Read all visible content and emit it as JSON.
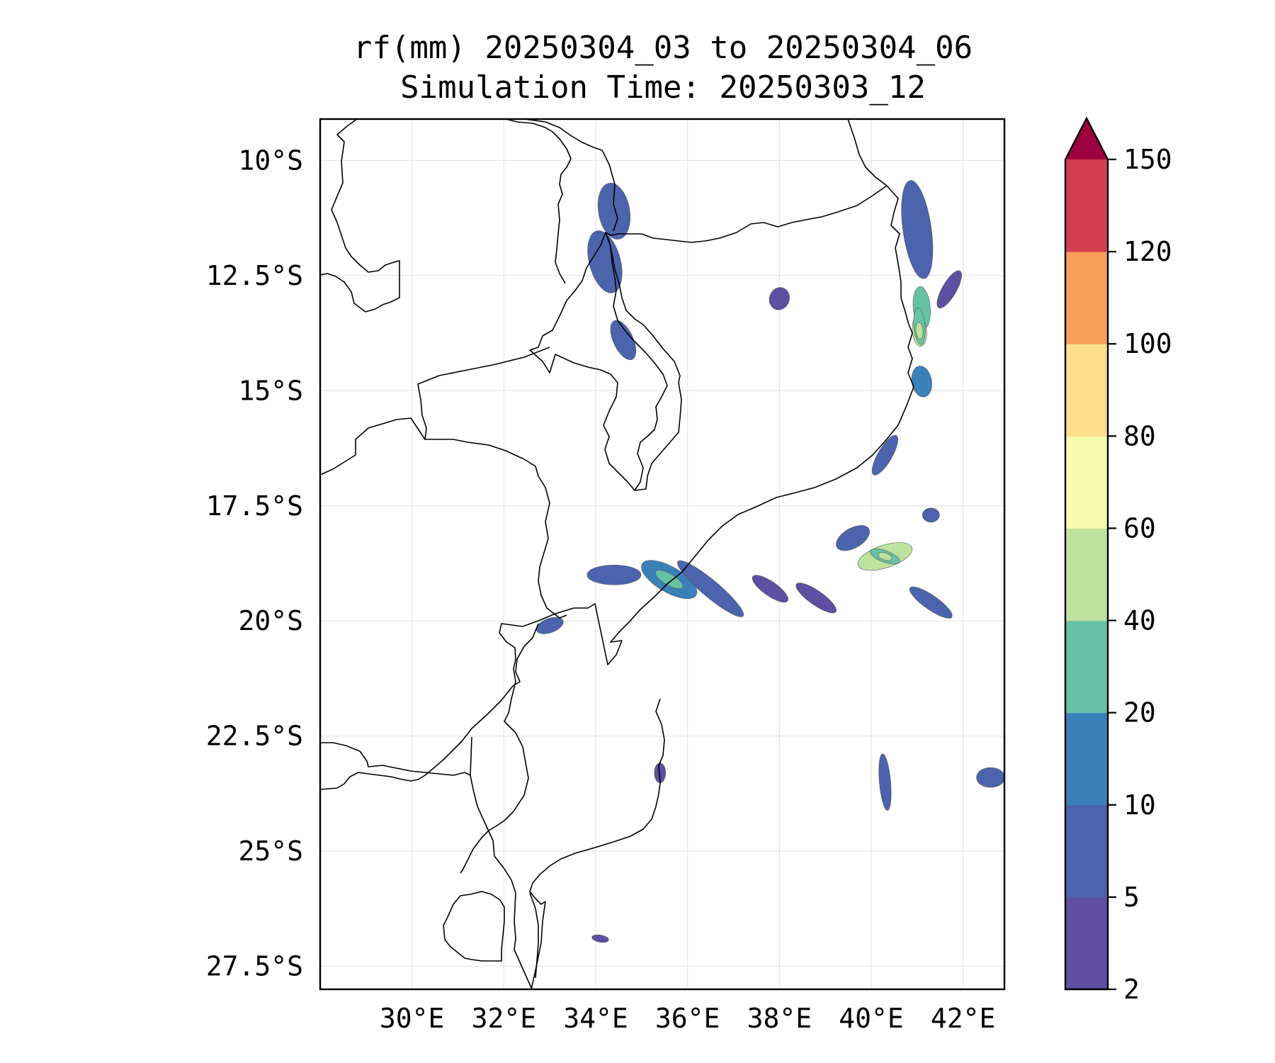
{
  "title": {
    "line1": "rf(mm) 20250304_03 to 20250304_06",
    "line2": "Simulation Time: 20250303_12"
  },
  "map": {
    "lon_range": [
      28.0,
      42.9
    ],
    "lat_range": [
      -28.0,
      -9.1
    ],
    "lon_ticks": [
      {
        "value": 30,
        "label": "30°E"
      },
      {
        "value": 32,
        "label": "32°E"
      },
      {
        "value": 34,
        "label": "34°E"
      },
      {
        "value": 36,
        "label": "36°E"
      },
      {
        "value": 38,
        "label": "38°E"
      },
      {
        "value": 40,
        "label": "40°E"
      },
      {
        "value": 42,
        "label": "42°E"
      }
    ],
    "lat_ticks": [
      {
        "value": -10,
        "label": "10°S"
      },
      {
        "value": -12.5,
        "label": "12.5°S"
      },
      {
        "value": -15,
        "label": "15°S"
      },
      {
        "value": -17.5,
        "label": "17.5°S"
      },
      {
        "value": -20,
        "label": "20°S"
      },
      {
        "value": -22.5,
        "label": "22.5°S"
      },
      {
        "value": -25,
        "label": "25°S"
      },
      {
        "value": -27.5,
        "label": "27.5°S"
      }
    ],
    "grid": true,
    "line_color": "#000000"
  },
  "colorbar": {
    "levels": [
      {
        "label": "2"
      },
      {
        "label": "5"
      },
      {
        "label": "10"
      },
      {
        "label": "20"
      },
      {
        "label": "40"
      },
      {
        "label": "60"
      },
      {
        "label": "80"
      },
      {
        "label": "100"
      },
      {
        "label": "120"
      },
      {
        "label": "150"
      }
    ],
    "colors": [
      "#5e4fa2",
      "#4c63ae",
      "#3a81ba",
      "#66c2a5",
      "#bde29e",
      "#f4faae",
      "#fddf8b",
      "#fa9f5b",
      "#d53e4f"
    ],
    "extend_color": "#9e0142",
    "extend": "max"
  },
  "chart_data": {
    "type": "heatmap",
    "variable": "rf(mm)",
    "rain_cells": [
      {
        "lon": 34.4,
        "lat": -11.1,
        "value": 8
      },
      {
        "lon": 34.2,
        "lat": -12.2,
        "value": 6
      },
      {
        "lon": 34.6,
        "lat": -13.9,
        "value": 5
      },
      {
        "lon": 41.0,
        "lat": -11.5,
        "value": 8
      },
      {
        "lon": 41.1,
        "lat": -13.2,
        "value": 20
      },
      {
        "lon": 41.05,
        "lat": -13.7,
        "value": 45
      },
      {
        "lon": 41.1,
        "lat": -14.8,
        "value": 15
      },
      {
        "lon": 41.7,
        "lat": -12.8,
        "value": 4
      },
      {
        "lon": 38.0,
        "lat": -13.0,
        "value": 4
      },
      {
        "lon": 40.3,
        "lat": -16.4,
        "value": 6
      },
      {
        "lon": 40.3,
        "lat": -18.6,
        "value": 40
      },
      {
        "lon": 39.6,
        "lat": -18.2,
        "value": 8
      },
      {
        "lon": 41.3,
        "lat": -17.7,
        "value": 8
      },
      {
        "lon": 35.6,
        "lat": -19.1,
        "value": 12
      },
      {
        "lon": 36.5,
        "lat": -19.3,
        "value": 8
      },
      {
        "lon": 34.4,
        "lat": -19.0,
        "value": 6
      },
      {
        "lon": 37.8,
        "lat": -19.3,
        "value": 4
      },
      {
        "lon": 38.8,
        "lat": -19.5,
        "value": 4
      },
      {
        "lon": 41.3,
        "lat": -19.6,
        "value": 5
      },
      {
        "lon": 33.0,
        "lat": -20.1,
        "value": 5
      },
      {
        "lon": 42.6,
        "lat": -23.4,
        "value": 6
      },
      {
        "lon": 40.3,
        "lat": -23.5,
        "value": 5
      },
      {
        "lon": 35.4,
        "lat": -23.3,
        "value": 4
      },
      {
        "lon": 34.1,
        "lat": -26.9,
        "value": 3
      }
    ]
  }
}
